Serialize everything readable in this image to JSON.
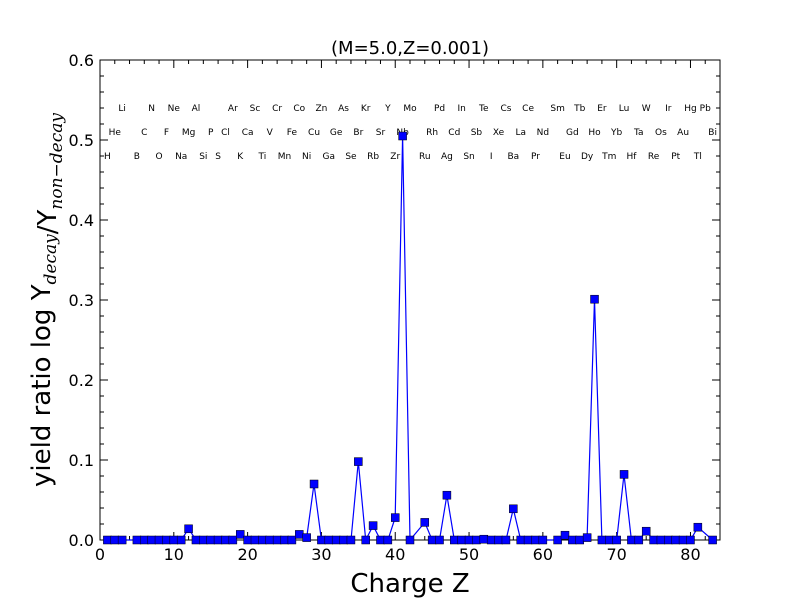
{
  "chart_data": {
    "type": "line",
    "title": "(M=5.0,Z=0.001)",
    "xlabel": "Charge Z",
    "ylabel": "yield ratio log Y_decay/Y_non−decay",
    "xlim": [
      0,
      84
    ],
    "ylim": [
      0,
      0.6
    ],
    "xticks": [
      "0",
      "10",
      "20",
      "30",
      "40",
      "50",
      "60",
      "70",
      "80"
    ],
    "yticks": [
      "0.0",
      "0.1",
      "0.2",
      "0.3",
      "0.4",
      "0.5",
      "0.6"
    ],
    "grid": false,
    "legend": "none",
    "color": "#0000ff",
    "marker": "square",
    "series": [
      {
        "x": [
          1,
          2,
          3,
          5,
          6,
          7,
          8,
          9,
          10,
          11,
          12,
          13,
          14,
          15,
          16,
          17,
          18,
          19,
          20,
          21,
          22,
          23,
          24,
          25,
          26,
          27,
          28,
          29,
          30,
          31,
          32,
          33,
          34,
          35,
          36,
          37,
          38,
          39,
          40,
          41,
          42,
          44,
          45,
          46,
          47,
          48,
          49,
          50,
          51,
          52,
          53,
          54,
          55,
          56,
          57,
          58,
          59,
          60,
          62,
          63,
          64,
          65,
          66,
          67,
          68,
          69,
          70,
          71,
          72,
          73,
          74,
          75,
          76,
          77,
          78,
          79,
          80,
          81,
          83
        ],
        "y": [
          0,
          0,
          0,
          0,
          0,
          0,
          0,
          0,
          0,
          0,
          0.014,
          0,
          0,
          0,
          0,
          0,
          0,
          0.007,
          0,
          0,
          0,
          0,
          0,
          0,
          0,
          0.007,
          0.003,
          0.07,
          0,
          0,
          0,
          0,
          0,
          0.098,
          0,
          0.018,
          0,
          0,
          0.028,
          0.505,
          0,
          0.022,
          0,
          0,
          0.056,
          0,
          0,
          0,
          0,
          0.001,
          0,
          0,
          0,
          0.039,
          0,
          0,
          0,
          0,
          0,
          0.006,
          0,
          0,
          0.003,
          0.301,
          0,
          0,
          0,
          0.082,
          0,
          0,
          0.011,
          0,
          0,
          0,
          0,
          0,
          0,
          0.016,
          0
        ]
      }
    ],
    "element_rows": [
      [
        {
          "z": 3,
          "s": "Li"
        },
        {
          "z": 7,
          "s": "N"
        },
        {
          "z": 10,
          "s": "Ne"
        },
        {
          "z": 13,
          "s": "Al"
        },
        {
          "z": 18,
          "s": "Ar"
        },
        {
          "z": 21,
          "s": "Sc"
        },
        {
          "z": 24,
          "s": "Cr"
        },
        {
          "z": 27,
          "s": "Co"
        },
        {
          "z": 30,
          "s": "Zn"
        },
        {
          "z": 33,
          "s": "As"
        },
        {
          "z": 36,
          "s": "Kr"
        },
        {
          "z": 39,
          "s": "Y"
        },
        {
          "z": 42,
          "s": "Mo"
        },
        {
          "z": 46,
          "s": "Pd"
        },
        {
          "z": 49,
          "s": "In"
        },
        {
          "z": 52,
          "s": "Te"
        },
        {
          "z": 55,
          "s": "Cs"
        },
        {
          "z": 58,
          "s": "Ce"
        },
        {
          "z": 62,
          "s": "Sm"
        },
        {
          "z": 65,
          "s": "Tb"
        },
        {
          "z": 68,
          "s": "Er"
        },
        {
          "z": 71,
          "s": "Lu"
        },
        {
          "z": 74,
          "s": "W"
        },
        {
          "z": 77,
          "s": "Ir"
        },
        {
          "z": 80,
          "s": "Hg"
        },
        {
          "z": 82,
          "s": "Pb"
        }
      ],
      [
        {
          "z": 2,
          "s": "He"
        },
        {
          "z": 6,
          "s": "C"
        },
        {
          "z": 9,
          "s": "F"
        },
        {
          "z": 12,
          "s": "Mg"
        },
        {
          "z": 15,
          "s": "P"
        },
        {
          "z": 17,
          "s": "Cl"
        },
        {
          "z": 20,
          "s": "Ca"
        },
        {
          "z": 23,
          "s": "V"
        },
        {
          "z": 26,
          "s": "Fe"
        },
        {
          "z": 29,
          "s": "Cu"
        },
        {
          "z": 32,
          "s": "Ge"
        },
        {
          "z": 35,
          "s": "Br"
        },
        {
          "z": 38,
          "s": "Sr"
        },
        {
          "z": 41,
          "s": "Nb"
        },
        {
          "z": 45,
          "s": "Rh"
        },
        {
          "z": 48,
          "s": "Cd"
        },
        {
          "z": 51,
          "s": "Sb"
        },
        {
          "z": 54,
          "s": "Xe"
        },
        {
          "z": 57,
          "s": "La"
        },
        {
          "z": 60,
          "s": "Nd"
        },
        {
          "z": 64,
          "s": "Gd"
        },
        {
          "z": 67,
          "s": "Ho"
        },
        {
          "z": 70,
          "s": "Yb"
        },
        {
          "z": 73,
          "s": "Ta"
        },
        {
          "z": 76,
          "s": "Os"
        },
        {
          "z": 79,
          "s": "Au"
        },
        {
          "z": 83,
          "s": "Bi"
        }
      ],
      [
        {
          "z": 1,
          "s": "H"
        },
        {
          "z": 5,
          "s": "B"
        },
        {
          "z": 8,
          "s": "O"
        },
        {
          "z": 11,
          "s": "Na"
        },
        {
          "z": 14,
          "s": "Si"
        },
        {
          "z": 16,
          "s": "S"
        },
        {
          "z": 19,
          "s": "K"
        },
        {
          "z": 22,
          "s": "Ti"
        },
        {
          "z": 25,
          "s": "Mn"
        },
        {
          "z": 28,
          "s": "Ni"
        },
        {
          "z": 31,
          "s": "Ga"
        },
        {
          "z": 34,
          "s": "Se"
        },
        {
          "z": 37,
          "s": "Rb"
        },
        {
          "z": 40,
          "s": "Zr"
        },
        {
          "z": 44,
          "s": "Ru"
        },
        {
          "z": 47,
          "s": "Ag"
        },
        {
          "z": 50,
          "s": "Sn"
        },
        {
          "z": 53,
          "s": "I"
        },
        {
          "z": 56,
          "s": "Ba"
        },
        {
          "z": 59,
          "s": "Pr"
        },
        {
          "z": 63,
          "s": "Eu"
        },
        {
          "z": 66,
          "s": "Dy"
        },
        {
          "z": 69,
          "s": "Tm"
        },
        {
          "z": 72,
          "s": "Hf"
        },
        {
          "z": 75,
          "s": "Re"
        },
        {
          "z": 78,
          "s": "Pt"
        },
        {
          "z": 81,
          "s": "Tl"
        }
      ]
    ]
  }
}
